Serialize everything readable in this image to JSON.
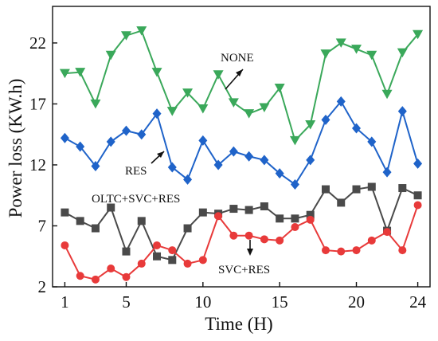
{
  "chart_data": {
    "type": "line",
    "xlabel": "Time (H)",
    "ylabel": "Power loss (KW.h)",
    "xlim": [
      0.2,
      24.8
    ],
    "ylim": [
      2,
      25
    ],
    "x_ticks": [
      1,
      5,
      10,
      15,
      20,
      24
    ],
    "y_ticks": [
      2,
      7,
      12,
      17,
      22
    ],
    "x": [
      1,
      2,
      3,
      4,
      5,
      6,
      7,
      8,
      9,
      10,
      11,
      12,
      13,
      14,
      15,
      16,
      17,
      18,
      19,
      20,
      21,
      22,
      23,
      24
    ],
    "series": [
      {
        "name": "NONE",
        "color": "#3aa85a",
        "marker": "triangle-down",
        "values": [
          19.5,
          19.6,
          17.0,
          21.0,
          22.6,
          23.0,
          19.6,
          16.4,
          17.9,
          16.6,
          19.4,
          17.1,
          16.2,
          16.7,
          18.3,
          14.0,
          15.3,
          21.1,
          22.0,
          21.5,
          21.0,
          17.8,
          21.2,
          22.7
        ]
      },
      {
        "name": "RES",
        "color": "#1f63c9",
        "marker": "diamond",
        "values": [
          14.2,
          13.5,
          11.9,
          13.9,
          14.8,
          14.5,
          16.2,
          11.8,
          10.8,
          14.0,
          12.0,
          13.1,
          12.7,
          12.4,
          11.3,
          10.4,
          12.4,
          15.7,
          17.2,
          15.0,
          13.9,
          11.4,
          16.4,
          12.1
        ]
      },
      {
        "name": "OLTC+SVC+RES",
        "color": "#4a4a4a",
        "marker": "square",
        "values": [
          8.1,
          7.4,
          6.8,
          8.5,
          4.9,
          7.4,
          4.5,
          4.2,
          6.8,
          8.1,
          8.0,
          8.4,
          8.3,
          8.6,
          7.6,
          7.6,
          7.9,
          10.0,
          8.9,
          10.0,
          10.2,
          6.6,
          10.1,
          9.5
        ]
      },
      {
        "name": "SVC+RES",
        "color": "#e83a3a",
        "marker": "circle",
        "values": [
          5.4,
          2.9,
          2.6,
          3.5,
          2.8,
          3.9,
          5.4,
          5.0,
          3.9,
          4.2,
          7.8,
          6.2,
          6.2,
          5.9,
          5.8,
          6.9,
          7.5,
          5.0,
          4.9,
          5.0,
          5.8,
          6.5,
          5.0,
          8.7
        ]
      }
    ],
    "annotations": [
      "NONE",
      "RES",
      "OLTC+SVC+RES",
      "SVC+RES"
    ],
    "legend": "none",
    "grid": false
  }
}
